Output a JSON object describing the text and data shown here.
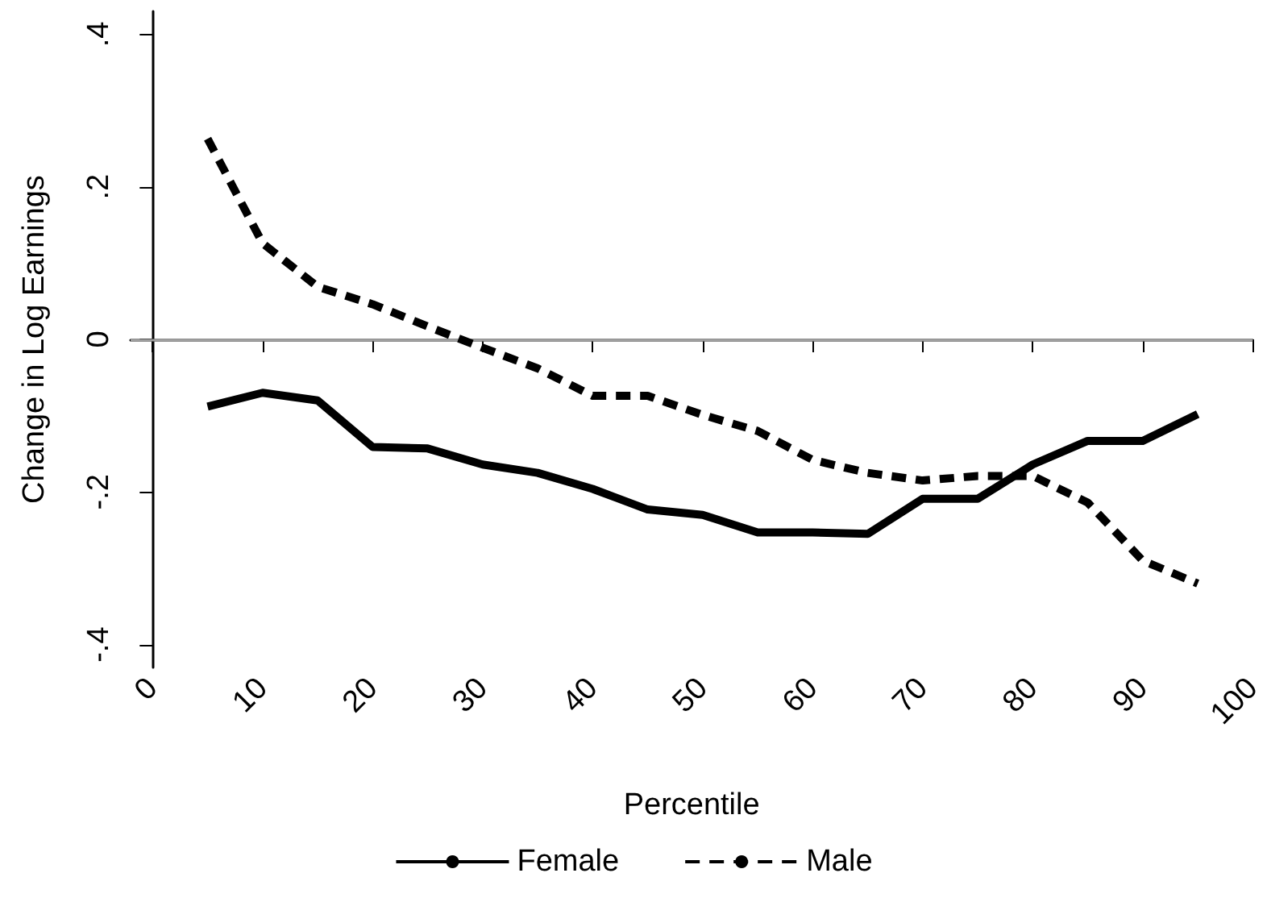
{
  "chart_data": {
    "type": "line",
    "xlabel": "Percentile",
    "ylabel": "Change in Log Earnings",
    "x": [
      5,
      10,
      15,
      20,
      25,
      30,
      35,
      40,
      45,
      50,
      55,
      60,
      65,
      70,
      75,
      80,
      85,
      90,
      95
    ],
    "series": [
      {
        "name": "Female",
        "color": "#000000",
        "line_style": "solid",
        "values": [
          -0.088,
          -0.07,
          -0.08,
          -0.141,
          -0.143,
          -0.164,
          -0.175,
          -0.196,
          -0.223,
          -0.23,
          -0.253,
          -0.253,
          -0.255,
          -0.209,
          -0.209,
          -0.164,
          -0.133,
          -0.133,
          -0.098
        ]
      },
      {
        "name": "Male",
        "color": "#000000",
        "line_style": "dashed",
        "values": [
          0.263,
          0.126,
          0.069,
          0.046,
          0.017,
          -0.011,
          -0.038,
          -0.074,
          -0.074,
          -0.099,
          -0.12,
          -0.158,
          -0.175,
          -0.185,
          -0.179,
          -0.179,
          -0.214,
          -0.29,
          -0.32
        ]
      }
    ],
    "xlim": [
      -2,
      100
    ],
    "xticks": [
      0,
      10,
      20,
      30,
      40,
      50,
      60,
      70,
      80,
      90,
      100
    ],
    "ylim": [
      -0.43,
      0.43
    ],
    "yticks": [
      {
        "value": -0.4,
        "label": "-.4"
      },
      {
        "value": -0.2,
        "label": "-.2"
      },
      0,
      {
        "value": 0.2,
        "label": ".2"
      },
      {
        "value": 0.4,
        "label": ".4"
      }
    ],
    "ref_lines": [
      {
        "axis": "y",
        "value": 0,
        "color": "#a0a0a0"
      }
    ],
    "grid": false,
    "legend": "bottom",
    "marker": "none"
  }
}
